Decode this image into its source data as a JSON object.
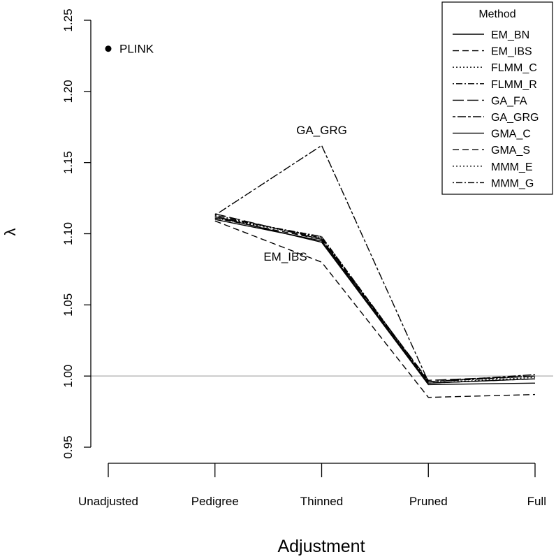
{
  "chart_data": {
    "type": "line",
    "title": "",
    "xlabel": "Adjustment",
    "ylabel": "λ",
    "categories": [
      "Unadjusted",
      "Pedigree",
      "Thinned",
      "Pruned",
      "Full"
    ],
    "ylim": [
      0.95,
      1.25
    ],
    "yticks": [
      "0.95",
      "1.00",
      "1.05",
      "1.10",
      "1.15",
      "1.20",
      "1.25"
    ],
    "reference_line": 1.0,
    "reference_line_color": "#bbbbbb",
    "legend": {
      "title": "Method",
      "position": "top-right"
    },
    "point": {
      "label": "PLINK",
      "category": "Unadjusted",
      "value": 1.23
    },
    "series": [
      {
        "name": "EM_BN",
        "dash": "solid",
        "values": [
          null,
          1.11,
          1.095,
          0.995,
          0.998
        ]
      },
      {
        "name": "EM_IBS",
        "dash": "dashed",
        "values": [
          null,
          1.109,
          1.08,
          0.985,
          0.987
        ]
      },
      {
        "name": "FLMM_C",
        "dash": "dotted",
        "values": [
          null,
          1.112,
          1.097,
          0.995,
          0.999
        ]
      },
      {
        "name": "FLMM_R",
        "dash": "dotdash",
        "values": [
          null,
          1.113,
          1.097,
          0.996,
          1.0
        ]
      },
      {
        "name": "GA_FA",
        "dash": "longdash",
        "values": [
          null,
          1.114,
          1.096,
          0.997,
          1.0
        ]
      },
      {
        "name": "GA_GRG",
        "dash": "twodash",
        "values": [
          null,
          1.113,
          1.162,
          0.996,
          1.001
        ]
      },
      {
        "name": "GMA_C",
        "dash": "solid",
        "values": [
          null,
          1.112,
          1.094,
          0.994,
          0.995
        ]
      },
      {
        "name": "GMA_S",
        "dash": "dashed",
        "values": [
          null,
          1.111,
          1.096,
          0.995,
          0.998
        ]
      },
      {
        "name": "MMM_E",
        "dash": "dotted",
        "values": [
          null,
          1.111,
          1.098,
          0.996,
          1.0
        ]
      },
      {
        "name": "MMM_G",
        "dash": "dotdash",
        "values": [
          null,
          1.112,
          1.098,
          0.996,
          1.0
        ]
      }
    ],
    "annotations": [
      {
        "text": "GA_GRG",
        "category": "Thinned",
        "value": 1.17
      },
      {
        "text": "EM_IBS",
        "category": "Thinned",
        "value": 1.081
      }
    ]
  }
}
